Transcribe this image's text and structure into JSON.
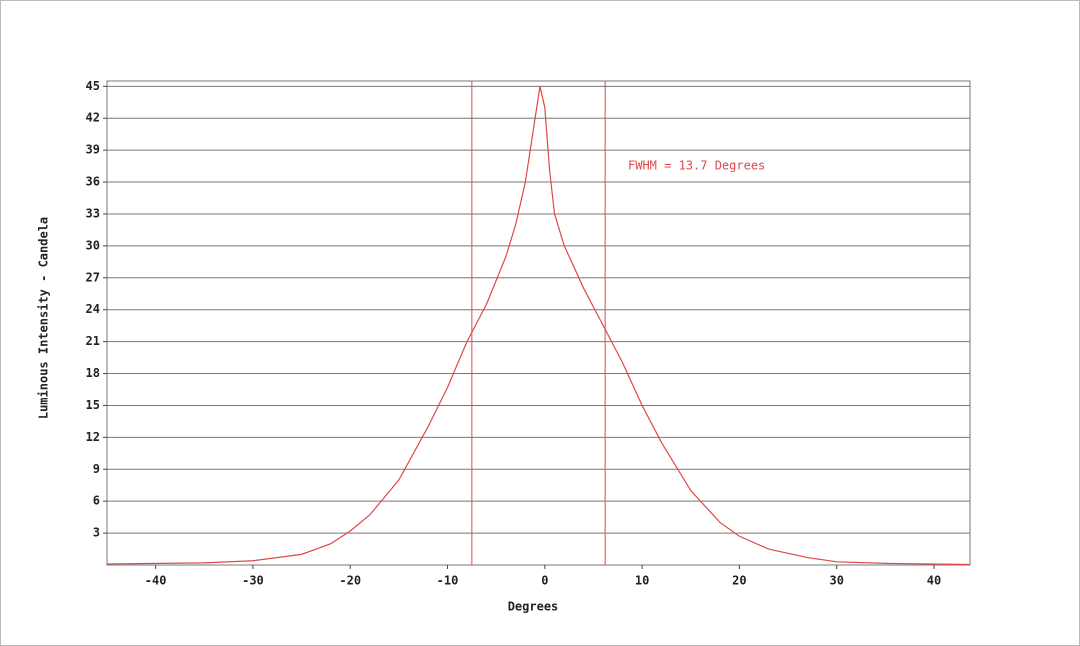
{
  "chart_data": {
    "type": "line",
    "x_label": "Degrees",
    "y_label": "Luminous Intensity - Candela",
    "annotation": "FWHM = 13.7 Degrees",
    "x": [
      -45,
      -35,
      -30,
      -25,
      -22,
      -20,
      -18,
      -15,
      -12,
      -10,
      -8,
      -6,
      -4,
      -3,
      -2,
      -1,
      -0.5,
      0,
      0.5,
      1,
      2,
      4,
      6,
      8,
      10,
      12,
      15,
      18,
      20,
      23,
      27,
      30,
      35,
      43.7
    ],
    "series": [
      {
        "name": "Intensity",
        "color": "#e04848",
        "values": [
          0.1,
          0.2,
          0.4,
          1,
          2,
          3.2,
          4.7,
          8,
          13,
          16.7,
          21,
          24.5,
          29,
          32,
          36,
          42,
          45,
          43,
          37,
          33,
          30,
          26,
          22.5,
          19,
          15,
          11.5,
          7,
          4,
          2.7,
          1.5,
          0.7,
          0.3,
          0.15,
          0.05
        ]
      }
    ],
    "markers": [
      -7.5,
      6.2
    ],
    "xlim": [
      -45,
      43.7
    ],
    "ylim": [
      0,
      45.5
    ],
    "xticks": [
      -40,
      -30,
      -20,
      -10,
      0,
      10,
      20,
      30,
      40
    ],
    "yticks": [
      3,
      6,
      9,
      12,
      15,
      18,
      21,
      24,
      27,
      30,
      33,
      36,
      39,
      42,
      45
    ],
    "grid": true
  }
}
